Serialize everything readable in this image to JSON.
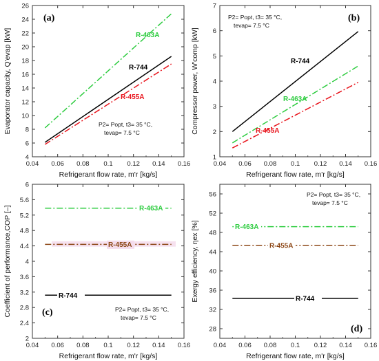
{
  "chart_data": [
    {
      "panel": "(a)",
      "type": "line",
      "xlabel": "Refrigerant flow rate, m'r [kg/s]",
      "ylabel": "Evaporator capacity, Q'evap [kW]",
      "xlim": [
        0.04,
        0.16
      ],
      "ylim": [
        4,
        26
      ],
      "xticks": [
        "0.04",
        "0.06",
        "0.08",
        "0.1",
        "0.12",
        "0.14",
        "0.16"
      ],
      "yticks": [
        "4",
        "6",
        "8",
        "10",
        "12",
        "14",
        "16",
        "18",
        "20",
        "22",
        "24",
        "26"
      ],
      "conditions": [
        "P2= Popt, t3= 35 °C,",
        "tevap= 7.5 °C"
      ],
      "series": [
        {
          "name": "R-463A",
          "color": "#2ecc40",
          "style": "dash-dot",
          "x": [
            0.05,
            0.15
          ],
          "y": [
            8.2,
            24.8
          ]
        },
        {
          "name": "R-744",
          "color": "#000000",
          "style": "solid",
          "x": [
            0.05,
            0.15
          ],
          "y": [
            6.1,
            18.6
          ]
        },
        {
          "name": "R-455A",
          "color": "#e8141c",
          "style": "dash-dot",
          "x": [
            0.05,
            0.15
          ],
          "y": [
            5.8,
            17.5
          ]
        }
      ]
    },
    {
      "panel": "(b)",
      "type": "line",
      "xlabel": "Refrigerant flow rate, m'r [kg/s]",
      "ylabel": "Compressor power, W'comp [kW]",
      "xlim": [
        0.04,
        0.16
      ],
      "ylim": [
        1,
        7
      ],
      "xticks": [
        "0.04",
        "0.06",
        "0.08",
        "0.1",
        "0.12",
        "0.14",
        "0.16"
      ],
      "yticks": [
        "1",
        "2",
        "3",
        "4",
        "5",
        "6",
        "7"
      ],
      "conditions": [
        "P2= Popt, t3= 35 °C,",
        "tevap= 7.5 °C"
      ],
      "series": [
        {
          "name": "R-744",
          "color": "#000000",
          "style": "solid",
          "x": [
            0.05,
            0.15
          ],
          "y": [
            2.0,
            5.97
          ]
        },
        {
          "name": "R-463A",
          "color": "#2ecc40",
          "style": "dash-dot",
          "x": [
            0.05,
            0.15
          ],
          "y": [
            1.55,
            4.6
          ]
        },
        {
          "name": "R-455A",
          "color": "#e8141c",
          "style": "dash-dot",
          "x": [
            0.05,
            0.15
          ],
          "y": [
            1.35,
            3.95
          ]
        }
      ]
    },
    {
      "panel": "(c)",
      "type": "line",
      "xlabel": "Refrigerant flow rate, m'r [kg/s]",
      "ylabel": "Coefficient of performance,COP [–]",
      "xlim": [
        0.04,
        0.16
      ],
      "ylim": [
        2,
        6
      ],
      "xticks": [
        "0.04",
        "0.06",
        "0.08",
        "0.1",
        "0.12",
        "0.14",
        "0.16"
      ],
      "yticks": [
        "2",
        "2.4",
        "2.8",
        "3.2",
        "3.6",
        "4",
        "4.4",
        "4.8",
        "5.2",
        "5.6",
        "6"
      ],
      "conditions": [
        "P2= Popt, t3= 35 °C,",
        "tevap= 7.5 °C"
      ],
      "series": [
        {
          "name": "R-463A",
          "color": "#2ecc40",
          "style": "dash-dot",
          "x": [
            0.05,
            0.15
          ],
          "y": [
            5.38,
            5.38
          ]
        },
        {
          "name": "R-455A",
          "color": "#8b4513",
          "style": "dash-dot",
          "x": [
            0.05,
            0.15
          ],
          "y": [
            4.44,
            4.44
          ]
        },
        {
          "name": "R-744",
          "color": "#000000",
          "style": "solid",
          "x": [
            0.05,
            0.15
          ],
          "y": [
            3.12,
            3.12
          ]
        }
      ]
    },
    {
      "panel": "(d)",
      "type": "line",
      "xlabel": "Refrigerant flow rate, m'r [kg/s]",
      "ylabel": "Exergy efficiency, ηex [%]",
      "xlim": [
        0.04,
        0.16
      ],
      "ylim": [
        26,
        58
      ],
      "xticks": [
        "0.04",
        "0.06",
        "0.08",
        "0.1",
        "0.12",
        "0.14",
        "0.16"
      ],
      "yticks": [
        "28",
        "32",
        "36",
        "40",
        "44",
        "48",
        "52",
        "56"
      ],
      "conditions": [
        "P2= Popt, t3= 35 °C,",
        "tevap= 7.5 °C"
      ],
      "series": [
        {
          "name": "R-463A",
          "color": "#2ecc40",
          "style": "dash-dot",
          "x": [
            0.05,
            0.15
          ],
          "y": [
            49.2,
            49.2
          ]
        },
        {
          "name": "R-455A",
          "color": "#8b4513",
          "style": "dash-dot",
          "x": [
            0.05,
            0.15
          ],
          "y": [
            45.3,
            45.3
          ]
        },
        {
          "name": "R-744",
          "color": "#000000",
          "style": "solid",
          "x": [
            0.05,
            0.15
          ],
          "y": [
            34.3,
            34.3
          ]
        }
      ]
    }
  ],
  "colors": {
    "R-463A_label": "#2ecc40",
    "R-744_label": "#000000",
    "R-455A_label": "#e8141c"
  }
}
